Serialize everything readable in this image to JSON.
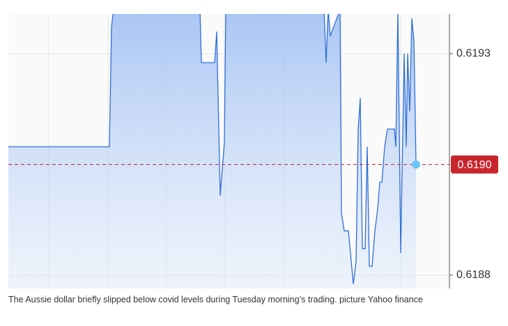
{
  "chart_data": {
    "type": "line",
    "x": [
      0,
      145,
      148,
      151,
      275,
      277,
      296,
      299,
      304,
      310,
      312,
      453,
      456,
      459,
      462,
      476,
      478,
      482,
      488,
      495,
      499,
      502,
      505,
      508,
      512,
      515,
      518,
      522,
      526,
      530,
      533,
      536,
      540,
      544,
      554,
      556,
      559,
      563,
      568,
      571,
      573,
      576,
      579,
      582,
      585
    ],
    "values": [
      0.61904,
      0.61904,
      0.61931,
      0.61935,
      0.61935,
      0.61923,
      0.61923,
      0.6193,
      0.61893,
      0.61905,
      0.61935,
      0.61935,
      0.61923,
      0.61935,
      0.61929,
      0.61935,
      0.61889,
      0.61885,
      0.61885,
      0.61873,
      0.61878,
      0.61908,
      0.61915,
      0.61881,
      0.61881,
      0.61904,
      0.61877,
      0.61877,
      0.61885,
      0.6189,
      0.61896,
      0.61896,
      0.61904,
      0.61908,
      0.61908,
      0.61904,
      0.61935,
      0.6188,
      0.61925,
      0.61904,
      0.61925,
      0.61912,
      0.61933,
      0.61928,
      0.619
    ],
    "color": "#2f6fd6",
    "xlim": [
      0,
      633
    ],
    "ylim": [
      0.61872,
      0.61934
    ],
    "yticks": [
      {
        "value": 0.61925,
        "label": "0.6193"
      },
      {
        "value": 0.61875,
        "label": "0.6188"
      }
    ],
    "current_value": 0.619,
    "current_label": "0.6190"
  },
  "caption": "The Aussie dollar briefly slipped below covid levels during Tuesday morning’s trading. picture Yahoo finance"
}
